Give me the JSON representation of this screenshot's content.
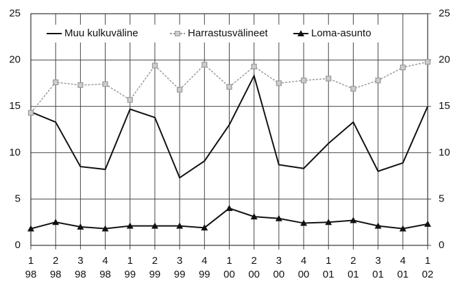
{
  "chart_data": {
    "type": "line",
    "categories": [
      [
        "1",
        "98"
      ],
      [
        "2",
        "98"
      ],
      [
        "3",
        "98"
      ],
      [
        "4",
        "98"
      ],
      [
        "1",
        "99"
      ],
      [
        "2",
        "99"
      ],
      [
        "3",
        "99"
      ],
      [
        "4",
        "99"
      ],
      [
        "1",
        "00"
      ],
      [
        "2",
        "00"
      ],
      [
        "3",
        "00"
      ],
      [
        "4",
        "00"
      ],
      [
        "1",
        "01"
      ],
      [
        "2",
        "01"
      ],
      [
        "3",
        "01"
      ],
      [
        "4",
        "01"
      ],
      [
        "1",
        "02"
      ]
    ],
    "series": [
      {
        "name": "Muu kulkuväline",
        "color": "#111111",
        "marker": "none",
        "dash": false,
        "values": [
          14.4,
          13.3,
          8.5,
          8.2,
          14.7,
          13.8,
          7.3,
          9.1,
          13.0,
          18.3,
          8.7,
          8.3,
          11.0,
          13.3,
          8.0,
          8.9,
          15.0
        ]
      },
      {
        "name": "Harrastusvälineet",
        "color": "#999999",
        "marker": "square",
        "dash": true,
        "values": [
          14.3,
          17.6,
          17.3,
          17.4,
          15.7,
          19.4,
          16.8,
          19.5,
          17.1,
          19.3,
          17.5,
          17.8,
          18.0,
          16.9,
          17.8,
          19.2,
          19.8
        ]
      },
      {
        "name": "Loma-asunto",
        "color": "#111111",
        "marker": "triangle",
        "dash": false,
        "values": [
          1.8,
          2.5,
          2.0,
          1.8,
          2.1,
          2.1,
          2.1,
          1.9,
          4.0,
          3.1,
          2.9,
          2.4,
          2.5,
          2.7,
          2.1,
          1.8,
          2.3
        ]
      }
    ],
    "ylim": [
      0,
      25
    ],
    "yticks": [
      0,
      5,
      10,
      15,
      20,
      25
    ],
    "y2lim": [
      0,
      25
    ],
    "y2ticks": [
      0,
      5,
      10,
      15,
      20,
      25
    ],
    "grid": true,
    "legend": "top"
  }
}
